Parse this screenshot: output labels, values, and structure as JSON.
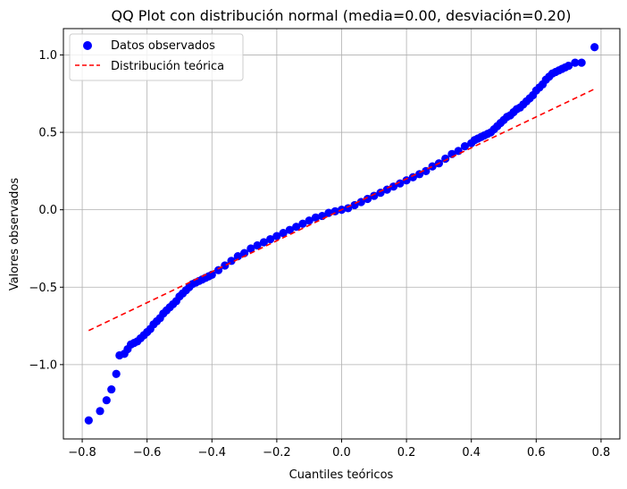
{
  "chart_data": {
    "type": "scatter",
    "title": "QQ Plot con distribución normal (media=0.00, desviación=0.20)",
    "xlabel": "Cuantiles teóricos",
    "ylabel": "Valores observados",
    "xlim": [
      -0.858,
      0.858
    ],
    "ylim": [
      -1.48,
      1.17
    ],
    "grid": true,
    "legend_position": "top-left",
    "x_ticks": [
      -0.8,
      -0.6,
      -0.4,
      -0.2,
      0.0,
      0.2,
      0.4,
      0.6,
      0.8
    ],
    "x_tick_labels": [
      "−0.8",
      "−0.6",
      "−0.4",
      "−0.2",
      "0.0",
      "0.2",
      "0.4",
      "0.6",
      "0.8"
    ],
    "y_ticks": [
      -1.0,
      -0.5,
      0.0,
      0.5,
      1.0
    ],
    "y_tick_labels": [
      "−1.0",
      "−0.5",
      "0.0",
      "0.5",
      "1.0"
    ],
    "series": [
      {
        "name": "Datos observados",
        "kind": "scatter",
        "color": "#0000ff",
        "x": [
          -0.78,
          -0.745,
          -0.725,
          -0.71,
          -0.695,
          -0.685,
          -0.67,
          -0.66,
          -0.65,
          -0.64,
          -0.63,
          -0.62,
          -0.61,
          -0.6,
          -0.59,
          -0.58,
          -0.57,
          -0.56,
          -0.55,
          -0.54,
          -0.53,
          -0.52,
          -0.51,
          -0.5,
          -0.49,
          -0.48,
          -0.47,
          -0.46,
          -0.45,
          -0.44,
          -0.43,
          -0.42,
          -0.41,
          -0.4,
          -0.38,
          -0.36,
          -0.34,
          -0.32,
          -0.3,
          -0.28,
          -0.26,
          -0.24,
          -0.22,
          -0.2,
          -0.18,
          -0.16,
          -0.14,
          -0.12,
          -0.1,
          -0.08,
          -0.06,
          -0.04,
          -0.02,
          0.0,
          0.02,
          0.04,
          0.06,
          0.08,
          0.1,
          0.12,
          0.14,
          0.16,
          0.18,
          0.2,
          0.22,
          0.24,
          0.26,
          0.28,
          0.3,
          0.32,
          0.34,
          0.36,
          0.38,
          0.4,
          0.41,
          0.42,
          0.43,
          0.44,
          0.45,
          0.46,
          0.47,
          0.48,
          0.49,
          0.5,
          0.51,
          0.52,
          0.53,
          0.54,
          0.55,
          0.56,
          0.57,
          0.58,
          0.59,
          0.6,
          0.61,
          0.62,
          0.63,
          0.64,
          0.65,
          0.66,
          0.67,
          0.68,
          0.69,
          0.7,
          0.72,
          0.74,
          0.78
        ],
        "y": [
          -1.36,
          -1.3,
          -1.23,
          -1.16,
          -1.06,
          -0.94,
          -0.93,
          -0.9,
          -0.87,
          -0.86,
          -0.85,
          -0.83,
          -0.81,
          -0.79,
          -0.77,
          -0.74,
          -0.72,
          -0.7,
          -0.67,
          -0.65,
          -0.63,
          -0.61,
          -0.59,
          -0.56,
          -0.54,
          -0.52,
          -0.5,
          -0.48,
          -0.47,
          -0.46,
          -0.45,
          -0.44,
          -0.43,
          -0.42,
          -0.39,
          -0.36,
          -0.33,
          -0.3,
          -0.28,
          -0.25,
          -0.23,
          -0.21,
          -0.19,
          -0.17,
          -0.15,
          -0.13,
          -0.11,
          -0.09,
          -0.07,
          -0.05,
          -0.04,
          -0.02,
          -0.01,
          0.0,
          0.01,
          0.03,
          0.05,
          0.07,
          0.09,
          0.11,
          0.13,
          0.15,
          0.17,
          0.19,
          0.21,
          0.23,
          0.25,
          0.28,
          0.3,
          0.33,
          0.36,
          0.38,
          0.41,
          0.43,
          0.45,
          0.46,
          0.47,
          0.48,
          0.49,
          0.5,
          0.52,
          0.54,
          0.56,
          0.58,
          0.6,
          0.61,
          0.63,
          0.65,
          0.66,
          0.68,
          0.7,
          0.72,
          0.74,
          0.77,
          0.79,
          0.81,
          0.84,
          0.86,
          0.88,
          0.89,
          0.9,
          0.91,
          0.92,
          0.93,
          0.95,
          0.95,
          1.05
        ]
      },
      {
        "name": "Distribución teórica",
        "kind": "line",
        "style": "dashed",
        "color": "#ff0000",
        "x": [
          -0.78,
          0.78
        ],
        "y": [
          -0.78,
          0.78
        ]
      }
    ]
  }
}
